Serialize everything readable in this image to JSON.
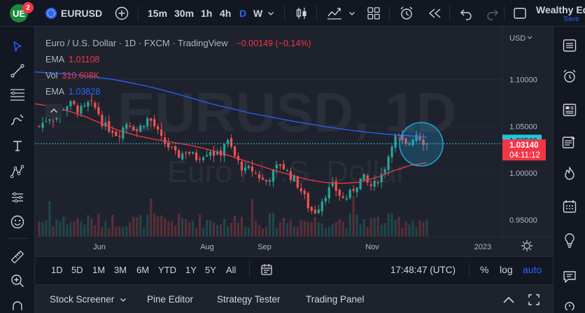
{
  "topbar": {
    "notification_count": "2",
    "symbol": "EURUSD",
    "timeframes": [
      "15m",
      "30m",
      "1h",
      "4h",
      "D",
      "W"
    ],
    "active_timeframe": "D",
    "layout_name": "Wealthy Ed",
    "save_label": "Save"
  },
  "chart": {
    "header": {
      "title": "Euro / U.S. Dollar · 1D · FXCM · TradingView",
      "change": "−0.00149 (−0.14%)"
    },
    "legend": [
      {
        "label": "EMA",
        "value": "1.01108",
        "color": "#f23645"
      },
      {
        "label": "Vol",
        "value": "310.608K",
        "color": "#f23645"
      },
      {
        "label": "EMA",
        "value": "1.03828",
        "color": "#2962ff"
      }
    ],
    "watermark": {
      "symbol": "EURUSD, 1D",
      "name": "Euro / U.S. Dollar"
    },
    "currency": "USD",
    "price_ticks": [
      {
        "label": "1.10000",
        "value": 1.1
      },
      {
        "label": "1.05000",
        "value": 1.05
      },
      {
        "label": "1.00000",
        "value": 1.0
      },
      {
        "label": "0.95000",
        "value": 0.95
      }
    ],
    "price_marker": {
      "label": "1.03500",
      "value": 1.035
    },
    "last_price": {
      "label": "1.03140",
      "value": 1.0314,
      "countdown": "04:11:12"
    },
    "time_ticks": [
      "Jun",
      "Aug",
      "Sep",
      "Nov",
      "2023"
    ],
    "colors": {
      "up": "#26a69a",
      "down": "#ef5350",
      "ema_slow": "#2962ff",
      "ema_fast": "#f23645",
      "highlight": "#1ea7d8"
    }
  },
  "chart_data": {
    "type": "candlestick",
    "x_range": [
      "May 2022",
      "Dec 2022"
    ],
    "ylim": [
      0.93,
      1.135
    ],
    "close_path": [
      1.05,
      1.055,
      1.06,
      1.058,
      1.064,
      1.07,
      1.074,
      1.072,
      1.067,
      1.068,
      1.074,
      1.072,
      1.065,
      1.052,
      1.048,
      1.046,
      1.04,
      1.048,
      1.055,
      1.05,
      1.045,
      1.052,
      1.058,
      1.055,
      1.045,
      1.035,
      1.03,
      1.025,
      1.018,
      1.02,
      1.024,
      1.02,
      1.016,
      1.019,
      1.022,
      1.025,
      1.018,
      1.022,
      1.036,
      1.028,
      1.016,
      1.008,
      1.002,
      1.005,
      1.0,
      0.995,
      0.99,
      0.996,
      1.003,
      1.01,
      1.005,
      0.998,
      0.993,
      0.985,
      0.975,
      0.962,
      0.958,
      0.965,
      0.975,
      0.982,
      0.986,
      0.978,
      0.972,
      0.975,
      0.983,
      0.99,
      0.996,
      0.988,
      0.985,
      0.993,
      1.0,
      1.015,
      1.035,
      1.04,
      1.032,
      1.028,
      1.038,
      1.043,
      1.035,
      1.0314
    ],
    "ema_slow_path": [
      1.108,
      1.1068,
      1.1052,
      1.1028,
      1.1,
      1.096,
      1.0915,
      1.086,
      1.08,
      1.074,
      1.069,
      1.064,
      1.06,
      1.056,
      1.0525,
      1.049,
      1.046,
      1.0435,
      1.0415,
      1.04,
      1.03828
    ],
    "ema_fast_path": [
      1.074,
      1.071,
      1.066,
      1.06,
      1.052,
      1.045,
      1.04,
      1.036,
      1.033,
      1.03,
      1.026,
      1.021,
      1.015,
      1.009,
      1.003,
      0.998,
      0.993,
      0.99,
      0.989,
      0.99,
      0.995,
      1.002,
      1.008,
      1.01108
    ]
  },
  "range_bar": {
    "ranges": [
      "1D",
      "5D",
      "1M",
      "3M",
      "6M",
      "YTD",
      "1Y",
      "5Y",
      "All"
    ],
    "clock": "17:48:47 (UTC)",
    "percent": "%",
    "log": "log",
    "auto": "auto"
  },
  "panel_tabs": {
    "tabs": [
      "Stock Screener",
      "Pine Editor",
      "Strategy Tester",
      "Trading Panel"
    ]
  },
  "icons": {
    "left": [
      "cursor-icon",
      "trend-line-icon",
      "fib-icon",
      "brush-icon",
      "text-icon",
      "pattern-icon",
      "forecast-icon",
      "emoji-icon",
      "ruler-icon",
      "zoom-icon"
    ],
    "right": [
      "watchlist-icon",
      "alerts-icon",
      "news-icon",
      "calendar-icon",
      "ideas-icon",
      "hotlist-icon",
      "data-window-icon",
      "idea-bulb-icon",
      "chat-icon",
      "notifications-icon"
    ]
  }
}
